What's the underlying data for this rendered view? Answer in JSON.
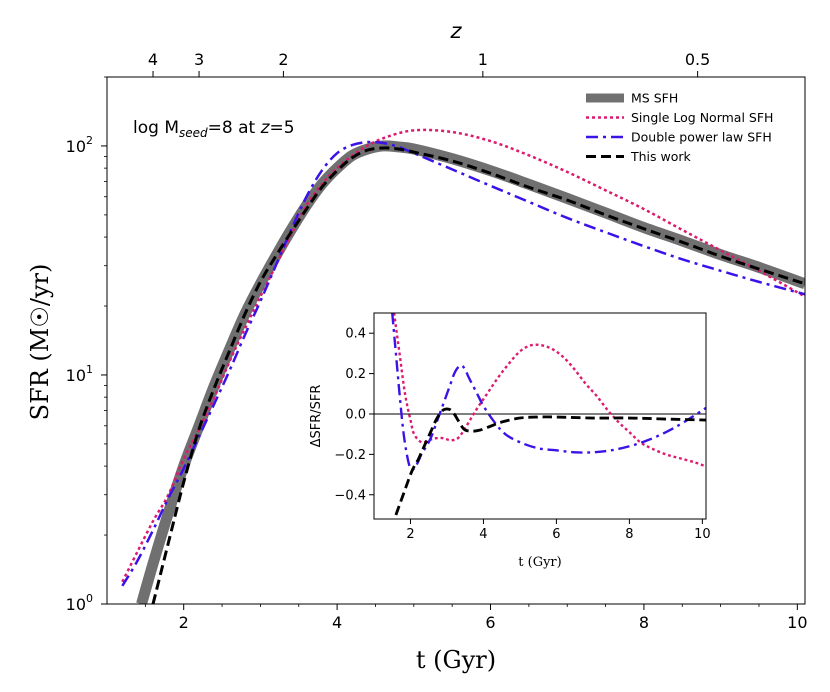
{
  "chart_data": [
    {
      "type": "line",
      "xlabel": "t (Gyr)",
      "ylabel": "SFR (M☉/yr)",
      "top_axis_label": "z",
      "annotation": {
        "prefix": "log M",
        "subscript": "seed",
        "middle": "=8 at ",
        "z": "z",
        "suffix": "=5"
      },
      "xlim": [
        1.0,
        10.1
      ],
      "ylim": [
        1.0,
        200.0
      ],
      "yscale": "log",
      "x_ticks": [
        2,
        4,
        6,
        8,
        10
      ],
      "x_tick_labels": [
        "2",
        "4",
        "6",
        "8",
        "10"
      ],
      "y_tick_labels": [
        {
          "value": 1,
          "base": "10",
          "exp": "0"
        },
        {
          "value": 10,
          "base": "10",
          "exp": "1"
        },
        {
          "value": 100,
          "base": "10",
          "exp": "2"
        }
      ],
      "top_ticks": [
        {
          "label": "4",
          "t": 1.6
        },
        {
          "label": "3",
          "t": 2.2
        },
        {
          "label": "2",
          "t": 3.3
        },
        {
          "label": "1",
          "t": 5.9
        },
        {
          "label": "0.5",
          "t": 8.7
        }
      ],
      "legend": "top-right",
      "series": [
        {
          "name": "MS SFH",
          "color": "#707070",
          "style": "solid-thick",
          "x": [
            1.45,
            1.6,
            1.8,
            2.0,
            2.2,
            2.4,
            2.6,
            2.8,
            3.0,
            3.2,
            3.4,
            3.6,
            3.8,
            4.0,
            4.2,
            4.4,
            4.6,
            4.8,
            5.0,
            5.5,
            6.0,
            6.5,
            7.0,
            7.5,
            8.0,
            8.5,
            9.0,
            9.5,
            10.1
          ],
          "y": [
            1.0,
            1.5,
            2.5,
            4.0,
            6.0,
            9.0,
            13.0,
            18.5,
            25.0,
            33.0,
            43.0,
            55.0,
            68.0,
            80.0,
            91.0,
            97.0,
            100.0,
            99.0,
            97.0,
            88.0,
            78.0,
            68.0,
            59.0,
            51.0,
            44.0,
            38.5,
            33.5,
            29.5,
            25.0
          ]
        },
        {
          "name": "Single Log Normal SFH",
          "color": "#dc1a6e",
          "style": "dotted",
          "x": [
            1.2,
            1.4,
            1.6,
            1.8,
            2.0,
            2.2,
            2.4,
            2.6,
            2.8,
            3.0,
            3.2,
            3.4,
            3.6,
            3.8,
            4.0,
            4.3,
            4.6,
            5.0,
            5.5,
            6.0,
            6.5,
            7.0,
            7.5,
            8.0,
            8.5,
            9.0,
            9.5,
            10.1
          ],
          "y": [
            1.25,
            1.7,
            2.3,
            3.0,
            4.3,
            5.8,
            8.0,
            11.5,
            16.0,
            22.0,
            30.0,
            41.0,
            55.0,
            68.0,
            80.0,
            96.0,
            108.0,
            117.0,
            115.0,
            105.0,
            91.0,
            77.0,
            64.0,
            53.0,
            43.0,
            35.0,
            28.5,
            22.0
          ]
        },
        {
          "name": "Double power law SFH",
          "color": "#3b12e8",
          "style": "dashdot",
          "x": [
            1.2,
            1.4,
            1.6,
            1.8,
            2.0,
            2.2,
            2.4,
            2.6,
            2.8,
            3.0,
            3.2,
            3.4,
            3.6,
            3.8,
            4.0,
            4.2,
            4.4,
            4.6,
            4.8,
            5.0,
            5.5,
            6.0,
            6.5,
            7.0,
            7.5,
            8.0,
            8.5,
            9.0,
            9.5,
            10.1
          ],
          "y": [
            1.2,
            1.55,
            2.1,
            2.9,
            3.9,
            5.4,
            7.5,
            10.5,
            15.0,
            21.0,
            30.0,
            43.0,
            60.0,
            78.0,
            93.0,
            101.0,
            104.0,
            103.0,
            99.0,
            93.0,
            79.0,
            67.0,
            57.0,
            48.5,
            42.0,
            36.5,
            32.0,
            28.5,
            25.5,
            22.5
          ]
        },
        {
          "name": "This work",
          "color": "#000000",
          "style": "dashed",
          "x": [
            1.6,
            1.8,
            2.0,
            2.2,
            2.4,
            2.6,
            2.8,
            3.0,
            3.2,
            3.4,
            3.6,
            3.8,
            4.0,
            4.2,
            4.4,
            4.6,
            4.8,
            5.0,
            5.5,
            6.0,
            6.5,
            7.0,
            7.5,
            8.0,
            8.5,
            9.0,
            9.5,
            10.1
          ],
          "y": [
            1.0,
            1.85,
            3.4,
            5.8,
            8.8,
            12.8,
            18.5,
            25.5,
            33.0,
            42.0,
            53.0,
            66.0,
            78.0,
            89.0,
            96.0,
            98.0,
            97.0,
            94.0,
            86.0,
            76.0,
            66.0,
            58.0,
            50.0,
            43.5,
            38.0,
            33.0,
            29.0,
            25.0
          ]
        }
      ]
    },
    {
      "type": "line",
      "inset": true,
      "xlabel": "t (Gyr)",
      "ylabel": "ΔSFR/SFR",
      "xlim": [
        1.0,
        10.1
      ],
      "ylim": [
        -0.52,
        0.5
      ],
      "x_ticks": [
        2,
        4,
        6,
        8,
        10
      ],
      "x_tick_labels": [
        "2",
        "4",
        "6",
        "8",
        "10"
      ],
      "y_ticks": [
        -0.4,
        -0.2,
        0.0,
        0.2,
        0.4
      ],
      "y_tick_labels": [
        "−0.4",
        "−0.2",
        "0.0",
        "0.2",
        "0.4"
      ],
      "hline": 0.0,
      "series": [
        {
          "name": "Single Log Normal SFH",
          "color": "#dc1a6e",
          "style": "dotted",
          "x": [
            1.55,
            1.7,
            1.85,
            2.0,
            2.1,
            2.3,
            2.5,
            2.7,
            2.9,
            3.1,
            3.3,
            3.5,
            3.8,
            4.1,
            4.4,
            4.7,
            5.0,
            5.3,
            5.6,
            5.9,
            6.2,
            6.5,
            6.8,
            7.1,
            7.4,
            7.7,
            8.0,
            8.3,
            8.6,
            9.0,
            9.4,
            9.8,
            10.1
          ],
          "y": [
            0.5,
            0.3,
            0.1,
            -0.03,
            -0.1,
            -0.14,
            -0.13,
            -0.12,
            -0.12,
            -0.13,
            -0.12,
            -0.07,
            0.02,
            0.1,
            0.18,
            0.25,
            0.31,
            0.34,
            0.34,
            0.32,
            0.28,
            0.22,
            0.15,
            0.09,
            0.02,
            -0.04,
            -0.09,
            -0.14,
            -0.17,
            -0.2,
            -0.22,
            -0.24,
            -0.26
          ]
        },
        {
          "name": "Double power law SFH",
          "color": "#3b12e8",
          "style": "dashdot",
          "x": [
            1.5,
            1.6,
            1.7,
            1.8,
            1.9,
            2.0,
            2.1,
            2.2,
            2.3,
            2.4,
            2.5,
            2.6,
            2.7,
            2.8,
            2.9,
            3.0,
            3.1,
            3.2,
            3.3,
            3.4,
            3.5,
            3.6,
            3.8,
            4.0,
            4.3,
            4.6,
            5.0,
            5.5,
            6.0,
            6.5,
            7.0,
            7.5,
            8.0,
            8.5,
            9.0,
            9.5,
            10.1
          ],
          "y": [
            0.5,
            0.3,
            0.1,
            -0.08,
            -0.2,
            -0.27,
            -0.27,
            -0.24,
            -0.2,
            -0.17,
            -0.14,
            -0.1,
            -0.05,
            0.0,
            0.05,
            0.1,
            0.15,
            0.2,
            0.23,
            0.24,
            0.22,
            0.18,
            0.11,
            0.04,
            -0.04,
            -0.1,
            -0.14,
            -0.17,
            -0.18,
            -0.19,
            -0.19,
            -0.18,
            -0.16,
            -0.13,
            -0.09,
            -0.04,
            0.03
          ]
        },
        {
          "name": "This work",
          "color": "#000000",
          "style": "dashed",
          "x": [
            1.6,
            1.8,
            2.0,
            2.1,
            2.2,
            2.3,
            2.4,
            2.5,
            2.6,
            2.7,
            2.8,
            2.9,
            3.0,
            3.1,
            3.2,
            3.3,
            3.4,
            3.5,
            3.7,
            3.9,
            4.2,
            4.5,
            5.0,
            5.5,
            6.0,
            7.0,
            8.0,
            9.0,
            10.1
          ],
          "y": [
            -0.5,
            -0.4,
            -0.3,
            -0.26,
            -0.23,
            -0.19,
            -0.15,
            -0.11,
            -0.07,
            -0.03,
            0.0,
            0.02,
            0.025,
            0.02,
            0.0,
            -0.03,
            -0.06,
            -0.08,
            -0.085,
            -0.08,
            -0.06,
            -0.04,
            -0.02,
            -0.015,
            -0.015,
            -0.02,
            -0.02,
            -0.025,
            -0.03
          ]
        }
      ]
    }
  ]
}
